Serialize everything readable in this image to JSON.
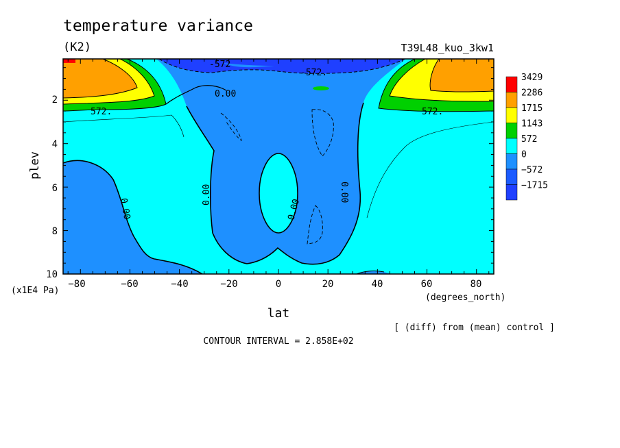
{
  "chart_data": {
    "type": "contour",
    "title": "temperature variance",
    "units": "(K2)",
    "run_label": "T39L48_kuo_3kw1",
    "xlabel": "lat",
    "x_units": "(degrees_north)",
    "ylabel": "plev",
    "y_units": "(x1E4 Pa)",
    "xlim": [
      -87,
      87
    ],
    "ylim": [
      10,
      0.1
    ],
    "x_ticks": [
      "−80",
      "−60",
      "−40",
      "−20",
      "0",
      "20",
      "40",
      "60",
      "80"
    ],
    "x_tick_values": [
      -80,
      -60,
      -40,
      -20,
      0,
      20,
      40,
      60,
      80
    ],
    "y_ticks": [
      "2",
      "4",
      "6",
      "8",
      "10"
    ],
    "y_tick_values": [
      2,
      4,
      6,
      8,
      10
    ],
    "note": "[ (diff) from (mean) control ]",
    "contour_interval": "CONTOUR INTERVAL = 2.858E+02",
    "contour_labels": [
      "-572",
      "-572.",
      "0.00",
      "0.00",
      "0.00",
      "0.00",
      "0.00",
      "572.",
      "572."
    ],
    "colorbar": {
      "labels": [
        "3429",
        "2286",
        "1715",
        "1143",
        "572",
        "0",
        "−572",
        "−1715"
      ],
      "colors": [
        "#ff0000",
        "#ffa000",
        "#ffff00",
        "#00d000",
        "#00ffff",
        "#1e90ff",
        "#1b5bff",
        "#1f40ff"
      ]
    },
    "levels": [
      {
        "value": -1715,
        "color": "#1f40ff"
      },
      {
        "value": -572,
        "color": "#1e90ff"
      },
      {
        "value": 0,
        "color": "#00ffff"
      },
      {
        "value": 572,
        "color": "#00d000"
      },
      {
        "value": 1143,
        "color": "#ffff00"
      },
      {
        "value": 1715,
        "color": "#ffa000"
      },
      {
        "value": 2286,
        "color": "#ff0000"
      }
    ]
  }
}
